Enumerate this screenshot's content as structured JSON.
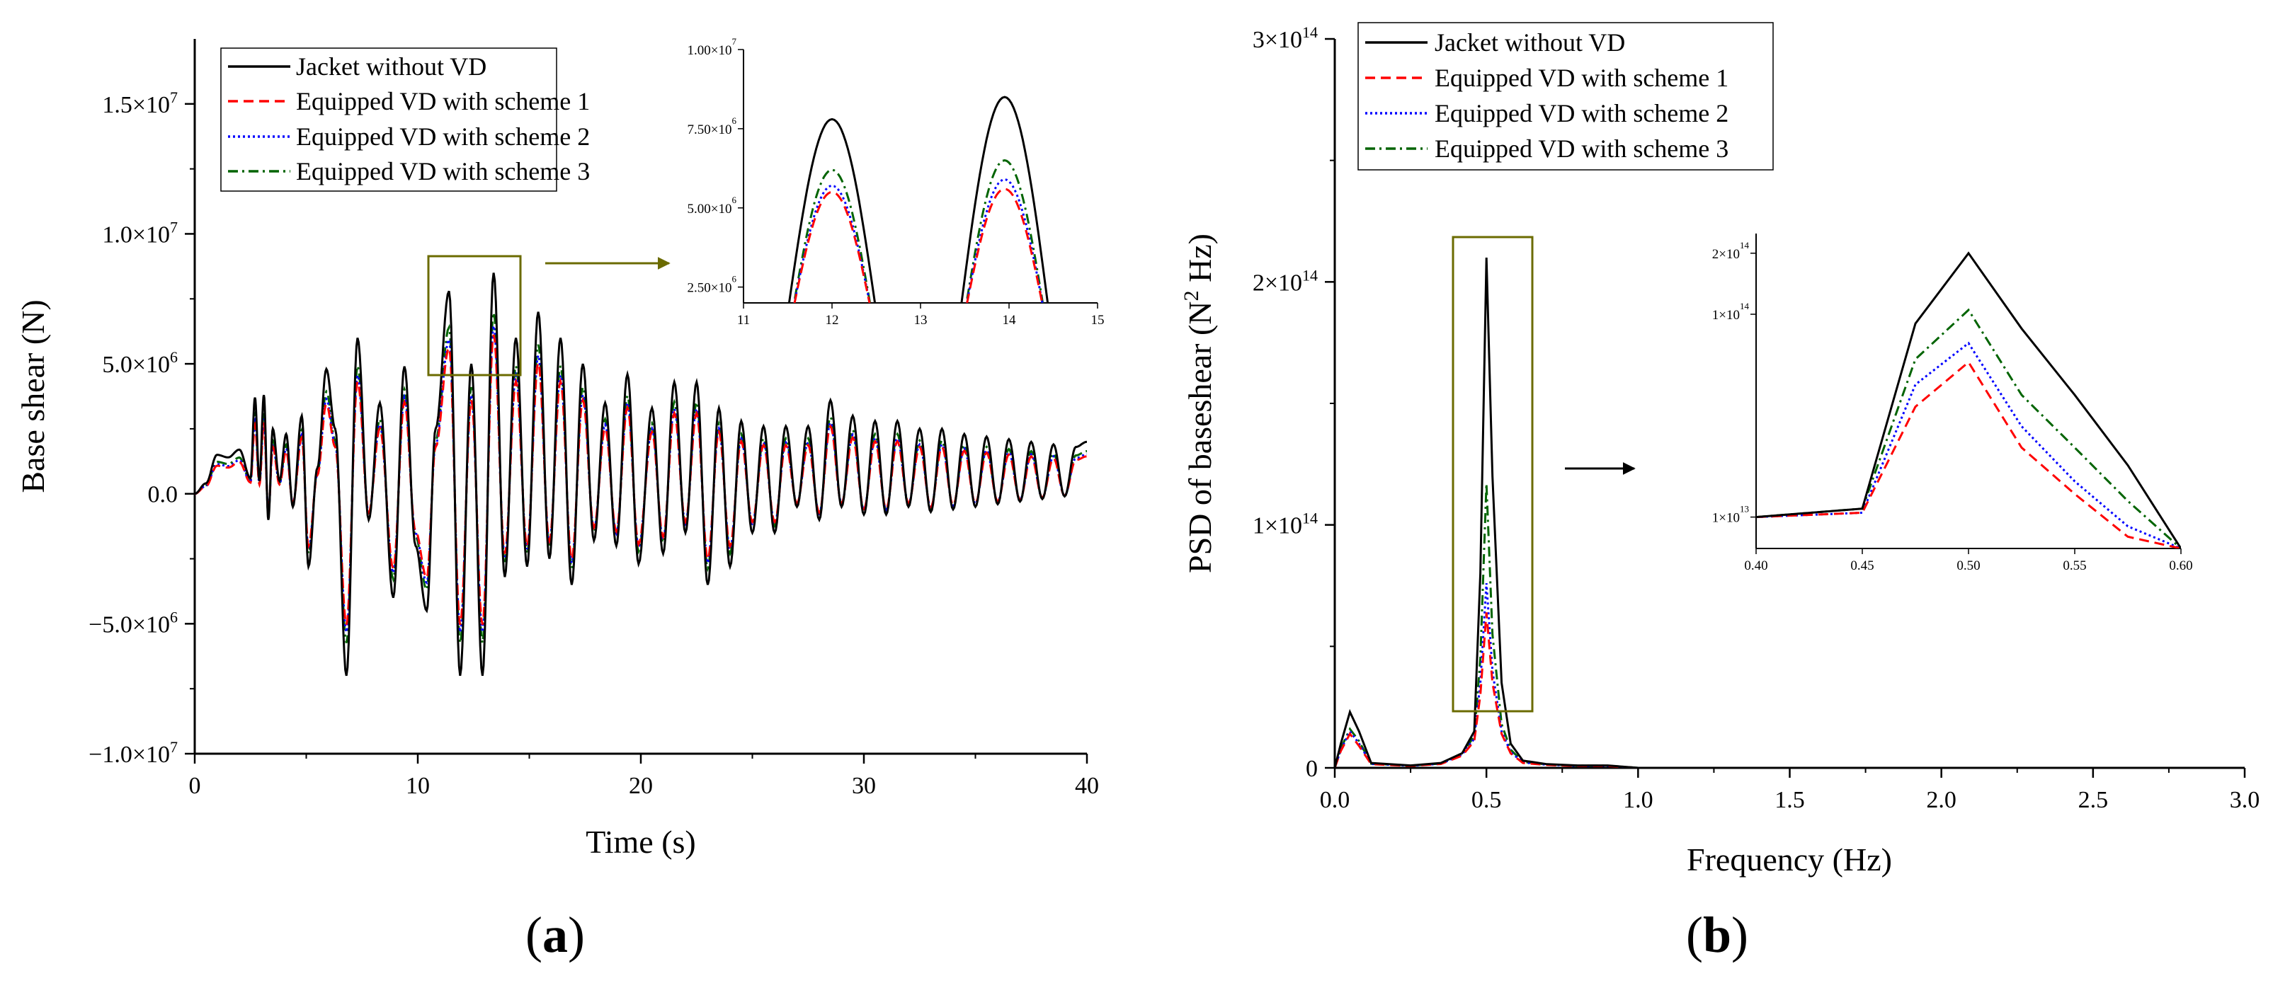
{
  "chart_data": [
    {
      "id": "a",
      "type": "line",
      "panel_label": "a",
      "xlabel": "Time (s)",
      "ylabel": "Base shear (N)",
      "xlim": [
        0,
        40
      ],
      "ylim": [
        -10000000,
        17500000
      ],
      "xticks": [
        0,
        10,
        20,
        30,
        40
      ],
      "yticks": [
        {
          "value": -10000000,
          "label": "−1.0×10",
          "exp": "7"
        },
        {
          "value": -5000000,
          "label": "−5.0×10",
          "exp": "6"
        },
        {
          "value": 0,
          "label": "0.0",
          "exp": ""
        },
        {
          "value": 5000000,
          "label": "5.0×10",
          "exp": "6"
        },
        {
          "value": 10000000,
          "label": "1.0×10",
          "exp": "7"
        },
        {
          "value": 15000000,
          "label": "1.5×10",
          "exp": "7"
        }
      ],
      "legend": {
        "position": "top-left",
        "entries": [
          {
            "name": "Jacket without VD",
            "color": "#000000",
            "dash": "solid"
          },
          {
            "name": "Equipped VD with scheme 1",
            "color": "#ff0000",
            "dash": "dash"
          },
          {
            "name": "Equipped VD with scheme 2",
            "color": "#0000ff",
            "dash": "dot"
          },
          {
            "name": "Equipped VD with scheme 3",
            "color": "#006400",
            "dash": "dashdot"
          }
        ]
      },
      "series_peaks": {
        "t": [
          0,
          0.5,
          1.0,
          1.5,
          2.0,
          2.5,
          2.7,
          2.9,
          3.1,
          3.3,
          3.5,
          3.8,
          4.1,
          4.4,
          4.8,
          5.1,
          5.5,
          5.9,
          6.3,
          6.8,
          7.3,
          7.8,
          8.3,
          8.9,
          9.4,
          9.9,
          10.4,
          10.8,
          11.4,
          11.9,
          12.4,
          12.9,
          13.4,
          13.9,
          14.4,
          14.9,
          15.4,
          15.9,
          16.4,
          16.9,
          17.4,
          17.9,
          18.4,
          18.9,
          19.4,
          19.9,
          20.5,
          21.0,
          21.5,
          22.0,
          22.5,
          23.0,
          23.5,
          24.0,
          24.5,
          25.0,
          25.5,
          26.0,
          26.5,
          27.0,
          27.5,
          28.0,
          28.5,
          29.0,
          29.5,
          30.0,
          30.5,
          31.0,
          31.5,
          32.0,
          32.5,
          33.0,
          33.5,
          34.0,
          34.5,
          35.0,
          35.5,
          36.0,
          36.5,
          37.0,
          37.5,
          38.0,
          38.5,
          39.0,
          39.5,
          40.0
        ],
        "s0": [
          0,
          400000,
          1500000,
          1400000,
          1700000,
          600000,
          3700000,
          500000,
          3800000,
          -1000000,
          2500000,
          500000,
          2300000,
          -500000,
          3000000,
          -2800000,
          1000000,
          4800000,
          2500000,
          -7000000,
          6000000,
          -1000000,
          3500000,
          -4000000,
          4900000,
          -2000000,
          -4500000,
          2500000,
          7800000,
          -7000000,
          5000000,
          -7000000,
          8500000,
          -3200000,
          6000000,
          -2800000,
          7000000,
          -2500000,
          6000000,
          -3500000,
          5000000,
          -1800000,
          3500000,
          -2000000,
          4600000,
          -2700000,
          3300000,
          -2300000,
          4300000,
          -1500000,
          4300000,
          -3500000,
          3300000,
          -2800000,
          2800000,
          -1500000,
          2600000,
          -1500000,
          2600000,
          -500000,
          2600000,
          -1000000,
          3600000,
          -500000,
          3000000,
          -800000,
          2800000,
          -800000,
          2800000,
          -500000,
          2500000,
          -700000,
          2500000,
          -600000,
          2300000,
          -500000,
          2200000,
          -400000,
          2100000,
          -300000,
          2000000,
          -200000,
          1900000,
          -100000,
          1800000,
          2000000
        ],
        "scale1": 0.72,
        "scale2": 0.76,
        "scale3": 0.82
      },
      "inset": {
        "xlim": [
          11,
          15
        ],
        "ylim": [
          2000000,
          10000000
        ],
        "xticks": [
          11,
          12,
          13,
          14,
          15
        ],
        "yticks": [
          {
            "value": 2500000,
            "label": "2.50×10",
            "exp": "6"
          },
          {
            "value": 5000000,
            "label": "5.00×10",
            "exp": "6"
          },
          {
            "value": 7500000,
            "label": "7.50×10",
            "exp": "6"
          },
          {
            "value": 10000000,
            "label": "1.00×10",
            "exp": "7"
          }
        ],
        "peaks": [
          {
            "t": 12.0,
            "values": [
              7800000,
              5500000,
              5700000,
              6200000
            ]
          },
          {
            "t": 13.95,
            "values": [
              8500000,
              5600000,
              5900000,
              6500000
            ]
          }
        ]
      }
    },
    {
      "id": "b",
      "type": "line",
      "panel_label": "b",
      "xlabel": "Frequency (Hz)",
      "ylabel_parts": [
        "PSD of baseshear (N",
        "2",
        " Hz)"
      ],
      "xlim": [
        0,
        3.0
      ],
      "ylim": [
        0,
        300000000000000
      ],
      "xticks": [
        "0.0",
        "0.5",
        "1.0",
        "1.5",
        "2.0",
        "2.5",
        "3.0"
      ],
      "yticks": [
        {
          "value": 0,
          "label": "0",
          "exp": ""
        },
        {
          "value": 100000000000000,
          "label": "1×10",
          "exp": "14"
        },
        {
          "value": 200000000000000,
          "label": "2×10",
          "exp": "14"
        },
        {
          "value": 300000000000000,
          "label": "3×10",
          "exp": "14"
        }
      ],
      "legend": {
        "position": "top-left",
        "entries": [
          {
            "name": "Jacket without VD",
            "color": "#000000",
            "dash": "solid"
          },
          {
            "name": "Equipped VD with scheme 1",
            "color": "#ff0000",
            "dash": "dash"
          },
          {
            "name": "Equipped VD with scheme 2",
            "color": "#0000ff",
            "dash": "dot"
          },
          {
            "name": "Equipped VD with scheme 3",
            "color": "#006400",
            "dash": "dashdot"
          }
        ]
      },
      "series": [
        {
          "name": "Jacket without VD",
          "x": [
            0.0,
            0.02,
            0.05,
            0.08,
            0.12,
            0.18,
            0.25,
            0.35,
            0.42,
            0.46,
            0.48,
            0.5,
            0.52,
            0.55,
            0.58,
            0.62,
            0.7,
            0.8,
            0.9,
            1.0,
            3.0
          ],
          "y": [
            0,
            10000000000000.0,
            23000000000000.0,
            15000000000000.0,
            2000000000000.0,
            1500000000000.0,
            1000000000000.0,
            2000000000000.0,
            6000000000000.0,
            15000000000000.0,
            80000000000000.0,
            210000000000000.0,
            120000000000000.0,
            35000000000000.0,
            10000000000000.0,
            3000000000000.0,
            1500000000000.0,
            1000000000000.0,
            1000000000000.0,
            0,
            0
          ]
        },
        {
          "name": "Equipped VD with scheme 1",
          "x": [
            0.0,
            0.02,
            0.05,
            0.08,
            0.12,
            0.18,
            0.25,
            0.35,
            0.42,
            0.46,
            0.48,
            0.5,
            0.52,
            0.55,
            0.58,
            0.62,
            0.7,
            0.8,
            0.9,
            1.0,
            3.0
          ],
          "y": [
            0,
            7000000000000.0,
            14000000000000.0,
            9000000000000.0,
            1500000000000.0,
            1200000000000.0,
            800000000000.0,
            1600000000000.0,
            5000000000000.0,
            11000000000000.0,
            30000000000000.0,
            64000000000000.0,
            35000000000000.0,
            14000000000000.0,
            6000000000000.0,
            2000000000000.0,
            1200000000000.0,
            800000000000.0,
            800000000000.0,
            0,
            0
          ]
        },
        {
          "name": "Equipped VD with scheme 2",
          "x": [
            0.0,
            0.02,
            0.05,
            0.08,
            0.12,
            0.18,
            0.25,
            0.35,
            0.42,
            0.46,
            0.48,
            0.5,
            0.52,
            0.55,
            0.58,
            0.62,
            0.7,
            0.8,
            0.9,
            1.0,
            3.0
          ],
          "y": [
            0,
            7500000000000.0,
            15000000000000.0,
            10000000000000.0,
            1600000000000.0,
            1300000000000.0,
            850000000000.0,
            1700000000000.0,
            5500000000000.0,
            12000000000000.0,
            35000000000000.0,
            76000000000000.0,
            40000000000000.0,
            15000000000000.0,
            6500000000000.0,
            2200000000000.0,
            1300000000000.0,
            850000000000.0,
            850000000000.0,
            0,
            0
          ]
        },
        {
          "name": "Equipped VD with scheme 3",
          "x": [
            0.0,
            0.02,
            0.05,
            0.08,
            0.12,
            0.18,
            0.25,
            0.35,
            0.42,
            0.46,
            0.48,
            0.5,
            0.52,
            0.55,
            0.58,
            0.62,
            0.7,
            0.8,
            0.9,
            1.0,
            3.0
          ],
          "y": [
            0,
            8000000000000.0,
            16000000000000.0,
            11000000000000.0,
            1700000000000.0,
            1400000000000.0,
            900000000000.0,
            1800000000000.0,
            6000000000000.0,
            13000000000000.0,
            45000000000000.0,
            117000000000000.0,
            55000000000000.0,
            18000000000000.0,
            7500000000000.0,
            2500000000000.0,
            1400000000000.0,
            900000000000.0,
            900000000000.0,
            0,
            0
          ]
        }
      ],
      "inset": {
        "xlim": [
          0.4,
          0.6
        ],
        "xticks": [
          "0.40",
          "0.45",
          "0.50",
          "0.55",
          "0.60"
        ],
        "yticks": [
          {
            "value": 10000000000000,
            "label": "1×10",
            "exp": "13"
          },
          {
            "value": 100000000000000,
            "label": "1×10",
            "exp": "14"
          },
          {
            "value": 200000000000000,
            "label": "2×10",
            "exp": "14"
          }
        ],
        "x": [
          0.4,
          0.45,
          0.475,
          0.5,
          0.525,
          0.55,
          0.575,
          0.6
        ],
        "series": [
          [
            10000000000000.0,
            11000000000000.0,
            90000000000000.0,
            200000000000000.0,
            85000000000000.0,
            40000000000000.0,
            18000000000000.0,
            0.0
          ],
          [
            10000000000000.0,
            10500000000000.0,
            35000000000000.0,
            58000000000000.0,
            22000000000000.0,
            13000000000000.0,
            8000000000000.0,
            0.0
          ],
          [
            10000000000000.0,
            10500000000000.0,
            45000000000000.0,
            72000000000000.0,
            28000000000000.0,
            15000000000000.0,
            9000000000000.0,
            0.0
          ],
          [
            10000000000000.0,
            11000000000000.0,
            60000000000000.0,
            105000000000000.0,
            40000000000000.0,
            22000000000000.0,
            12000000000000.0,
            0.0
          ]
        ]
      }
    }
  ]
}
